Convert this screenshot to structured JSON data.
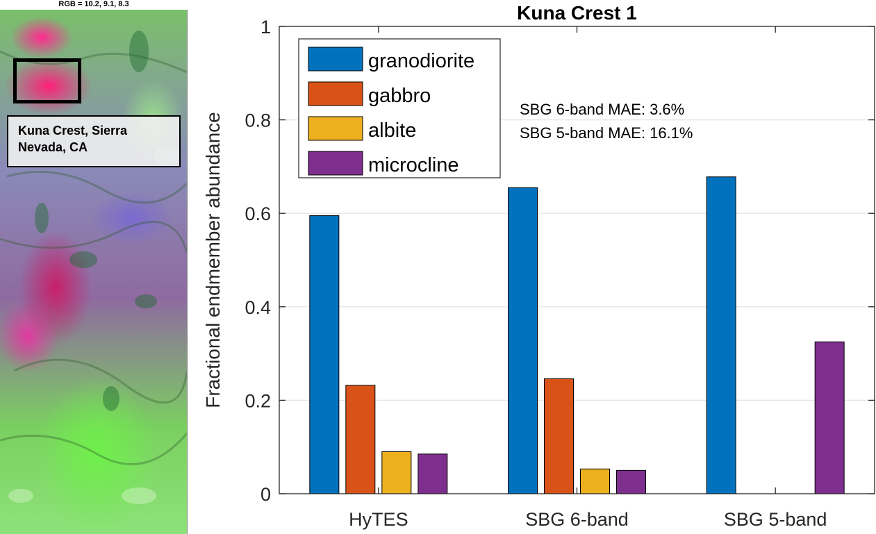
{
  "map_panel": {
    "rgb_label": "RGB = 10.2, 9.1, 8.3",
    "location_label": "Kuna Crest, Sierra Nevada, CA"
  },
  "chart_data": {
    "type": "bar",
    "title": "Kuna Crest 1",
    "xlabel": "",
    "ylabel": "Fractional endmember abundance",
    "ylim": [
      0,
      1
    ],
    "yticks": [
      0,
      0.2,
      0.4,
      0.6,
      0.8,
      1
    ],
    "ytick_labels": [
      "0",
      "0.2",
      "0.4",
      "0.6",
      "0.8",
      "1"
    ],
    "grid": "horizontal",
    "legend_position": "top-left",
    "categories": [
      "HyTES",
      "SBG 6-band",
      "SBG 5-band"
    ],
    "series": [
      {
        "name": "granodiorite",
        "color": "#0072BD",
        "values": [
          0.595,
          0.655,
          0.678
        ]
      },
      {
        "name": "gabbro",
        "color": "#D95319",
        "values": [
          0.232,
          0.246,
          0
        ]
      },
      {
        "name": "albite",
        "color": "#EDB120",
        "values": [
          0.09,
          0.053,
          0
        ]
      },
      {
        "name": "microcline",
        "color": "#7E2F8E",
        "values": [
          0.085,
          0.05,
          0.325
        ]
      }
    ],
    "annotations": [
      "SBG 6-band MAE:  3.6%",
      "SBG 5-band MAE:  16.1%"
    ]
  }
}
